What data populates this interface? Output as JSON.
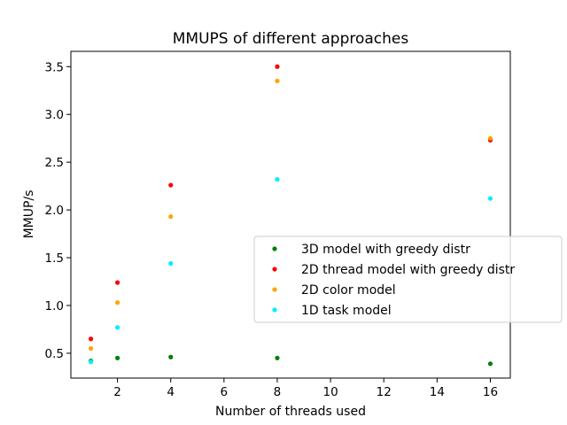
{
  "chart_data": {
    "type": "scatter",
    "title": "MMUPS of different approaches",
    "xlabel": "Number of threads used",
    "ylabel": "MMUP/s",
    "xlim": [
      0.25,
      16.75
    ],
    "ylim": [
      0.24,
      3.66
    ],
    "xticks": [
      2,
      4,
      6,
      8,
      10,
      12,
      14,
      16
    ],
    "yticks": [
      0.5,
      1.0,
      1.5,
      2.0,
      2.5,
      3.0,
      3.5
    ],
    "ytick_labels": [
      "0.5",
      "1.0",
      "1.5",
      "2.0",
      "2.5",
      "3.0",
      "3.5"
    ],
    "legend_position": "center-right",
    "x": [
      1,
      2,
      4,
      8,
      16
    ],
    "series": [
      {
        "name": "3D model with greedy distr",
        "color": "#008000",
        "values": [
          0.42,
          0.45,
          0.46,
          0.45,
          0.39
        ]
      },
      {
        "name": "2D thread model with greedy distr",
        "color": "#ff0000",
        "values": [
          0.65,
          1.24,
          2.26,
          3.5,
          2.73
        ]
      },
      {
        "name": "2D color model",
        "color": "#ffa500",
        "values": [
          0.55,
          1.03,
          1.93,
          3.35,
          2.75
        ]
      },
      {
        "name": "1D task model",
        "color": "#00eeff",
        "values": [
          0.41,
          0.77,
          1.44,
          2.32,
          2.12
        ]
      }
    ]
  }
}
